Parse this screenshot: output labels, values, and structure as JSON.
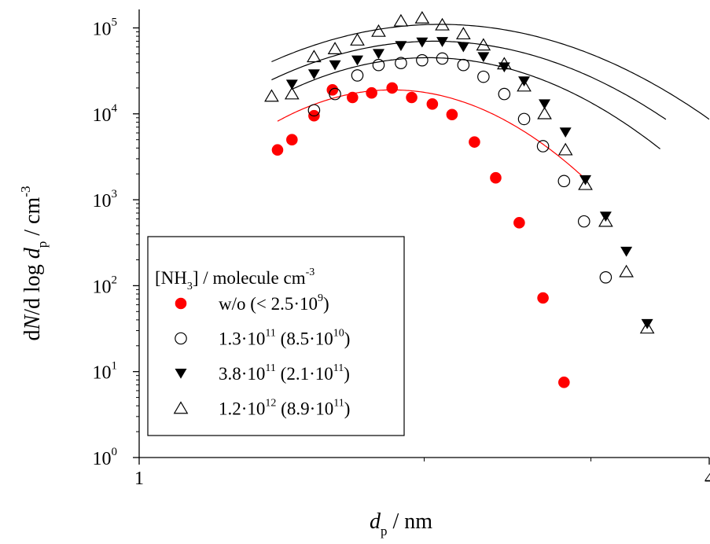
{
  "chart_data": {
    "type": "scatter",
    "x_scale": "log",
    "y_scale": "log",
    "xlim": [
      1,
      4
    ],
    "ylim": [
      1,
      140000
    ],
    "grid": false,
    "x_ticks": [
      {
        "value": 1,
        "label": "1"
      },
      {
        "value": 4,
        "label": "4"
      }
    ],
    "x_minor_ticks": [
      2,
      3
    ],
    "y_ticks": [
      {
        "value": 1,
        "base": "10",
        "exp": "0"
      },
      {
        "value": 10,
        "base": "10",
        "exp": "1"
      },
      {
        "value": 100,
        "base": "10",
        "exp": "2"
      },
      {
        "value": 1000,
        "base": "10",
        "exp": "3"
      },
      {
        "value": 10000,
        "base": "10",
        "exp": "4"
      },
      {
        "value": 100000,
        "base": "10",
        "exp": "5"
      }
    ],
    "xlabel": {
      "var": "d",
      "sub": "p",
      "rest": " / nm"
    },
    "ylabel": {
      "pre": "d",
      "var": "N",
      "mid": "/d log ",
      "var2": "d",
      "sub": "p",
      "rest": " / cm",
      "sup": "-3"
    },
    "legend": {
      "position": "bottom-left",
      "title": {
        "text": "[NH",
        "sub": "3",
        "rest": "] / molecule cm",
        "sup": "-3"
      },
      "entries": [
        {
          "marker": "filled-circle",
          "color": "#ff0000",
          "parts": [
            [
              "t",
              "w/o (< 2.5·10"
            ],
            [
              "sup",
              "9"
            ],
            [
              "t",
              ")"
            ]
          ]
        },
        {
          "marker": "open-circle",
          "color": "#000000",
          "parts": [
            [
              "t",
              "1.3·10"
            ],
            [
              "sup",
              "11"
            ],
            [
              "t",
              " (8.5·10"
            ],
            [
              "sup",
              "10"
            ],
            [
              "t",
              ")"
            ]
          ]
        },
        {
          "marker": "filled-triangle-down",
          "color": "#000000",
          "parts": [
            [
              "t",
              "3.8·10"
            ],
            [
              "sup",
              "11"
            ],
            [
              "t",
              " (2.1·10"
            ],
            [
              "sup",
              "11"
            ],
            [
              "t",
              ")"
            ]
          ]
        },
        {
          "marker": "open-triangle-up",
          "color": "#000000",
          "parts": [
            [
              "t",
              "1.2·10"
            ],
            [
              "sup",
              "12"
            ],
            [
              "t",
              " (8.9·10"
            ],
            [
              "sup",
              "11"
            ],
            [
              "t",
              ")"
            ]
          ]
        }
      ]
    },
    "series": [
      {
        "id": "s1",
        "marker": "filled-circle",
        "color": "#ff0000",
        "points": [
          [
            1.4,
            3800
          ],
          [
            1.45,
            5000
          ],
          [
            1.53,
            9500
          ],
          [
            1.6,
            19000
          ],
          [
            1.68,
            15500
          ],
          [
            1.76,
            17500
          ],
          [
            1.85,
            20000
          ],
          [
            1.94,
            15500
          ],
          [
            2.04,
            13000
          ],
          [
            2.14,
            9800
          ],
          [
            2.26,
            4700
          ],
          [
            2.38,
            1800
          ],
          [
            2.52,
            540
          ],
          [
            2.67,
            72
          ],
          [
            2.81,
            7.5
          ]
        ],
        "fit": {
          "color": "#ff0000",
          "ln_peak": 1.85,
          "peak_y": 19000,
          "sigma": 0.215,
          "x_range": [
            1.4,
            2.96
          ]
        }
      },
      {
        "id": "s2",
        "marker": "open-circle",
        "color": "#000000",
        "points": [
          [
            1.53,
            11000
          ],
          [
            1.61,
            17000
          ],
          [
            1.7,
            28000
          ],
          [
            1.79,
            37000
          ],
          [
            1.89,
            39000
          ],
          [
            1.99,
            42000
          ],
          [
            2.09,
            44000
          ],
          [
            2.2,
            37000
          ],
          [
            2.31,
            27000
          ],
          [
            2.43,
            17000
          ],
          [
            2.55,
            8700
          ],
          [
            2.67,
            4200
          ],
          [
            2.81,
            1650
          ],
          [
            2.95,
            560
          ],
          [
            3.11,
            125
          ]
        ],
        "fit": {
          "color": "#000000",
          "ln_peak": 2.02,
          "peak_y": 45000,
          "sigma": 0.255,
          "x_range": [
            1.45,
            3.55
          ]
        }
      },
      {
        "id": "s3",
        "marker": "filled-triangle-down",
        "color": "#000000",
        "points": [
          [
            1.45,
            22000
          ],
          [
            1.53,
            29000
          ],
          [
            1.61,
            37000
          ],
          [
            1.7,
            42000
          ],
          [
            1.79,
            50000
          ],
          [
            1.89,
            62000
          ],
          [
            1.99,
            68000
          ],
          [
            2.09,
            69000
          ],
          [
            2.2,
            60000
          ],
          [
            2.31,
            46000
          ],
          [
            2.43,
            35000
          ],
          [
            2.55,
            24000
          ],
          [
            2.68,
            13000
          ],
          [
            2.82,
            6100
          ],
          [
            2.96,
            1700
          ],
          [
            3.11,
            640
          ],
          [
            3.27,
            250
          ],
          [
            3.44,
            36
          ]
        ],
        "fit": {
          "color": "#000000",
          "ln_peak": 2.05,
          "peak_y": 70000,
          "sigma": 0.275,
          "x_range": [
            1.38,
            3.6
          ]
        }
      },
      {
        "id": "s4",
        "marker": "open-triangle-up",
        "color": "#000000",
        "points": [
          [
            1.38,
            16000
          ],
          [
            1.45,
            17000
          ],
          [
            1.53,
            46000
          ],
          [
            1.61,
            57000
          ],
          [
            1.7,
            72000
          ],
          [
            1.79,
            91000
          ],
          [
            1.89,
            120000
          ],
          [
            1.99,
            130000
          ],
          [
            2.09,
            108000
          ],
          [
            2.2,
            85000
          ],
          [
            2.31,
            63000
          ],
          [
            2.43,
            38000
          ],
          [
            2.55,
            21000
          ],
          [
            2.68,
            10000
          ],
          [
            2.82,
            3800
          ],
          [
            2.96,
            1500
          ],
          [
            3.11,
            560
          ],
          [
            3.27,
            145
          ],
          [
            3.44,
            32
          ]
        ],
        "fit": {
          "color": "#000000",
          "ln_peak": 2.08,
          "peak_y": 110000,
          "sigma": 0.29,
          "x_range": [
            1.38,
            4.0
          ]
        }
      }
    ]
  }
}
